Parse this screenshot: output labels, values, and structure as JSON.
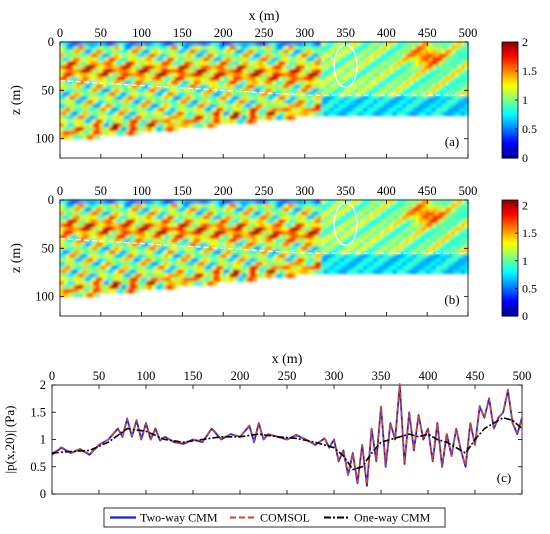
{
  "colors": {
    "two_way": "#1f1fd6",
    "comsol": "#c8482a",
    "one_way": "#000000",
    "colormap": [
      "#00008f",
      "#0000ff",
      "#0080ff",
      "#00ffff",
      "#80ff80",
      "#ffff00",
      "#ff8000",
      "#ff0000",
      "#800000"
    ]
  },
  "chart_data": [
    {
      "type": "heatmap",
      "panel_label": "(a)",
      "title": "",
      "xlabel": "x (m)",
      "ylabel": "z (m)",
      "xlim": [
        0,
        500
      ],
      "ylim": [
        0,
        120
      ],
      "y_reversed": true,
      "xticks": [
        "0",
        "50",
        "100",
        "150",
        "200",
        "250",
        "300",
        "350",
        "400",
        "450",
        "500"
      ],
      "yticks": [
        "0",
        "50",
        "100"
      ],
      "colorbar": {
        "range": [
          0,
          2
        ],
        "ticks": [
          "0",
          "0.5",
          "1",
          "1.5",
          "2"
        ]
      },
      "seabed_depth": [
        [
          0,
          100
        ],
        [
          300,
          75
        ],
        [
          500,
          75
        ]
      ],
      "interface_depth": [
        [
          0,
          40
        ],
        [
          300,
          55
        ],
        [
          500,
          55
        ]
      ],
      "annotation": {
        "type": "circle",
        "center": [
          350,
          25
        ],
        "radius_x": 14,
        "radius_y": 22
      }
    },
    {
      "type": "heatmap",
      "panel_label": "(b)",
      "title": "",
      "xlabel": "",
      "ylabel": "z (m)",
      "xlim": [
        0,
        500
      ],
      "ylim": [
        0,
        120
      ],
      "y_reversed": true,
      "xticks": [
        "0",
        "50",
        "100",
        "150",
        "200",
        "250",
        "300",
        "350",
        "400",
        "450",
        "500"
      ],
      "yticks": [
        "0",
        "50",
        "100"
      ],
      "colorbar": {
        "range": [
          0,
          2.1
        ],
        "ticks": [
          "0",
          "0.5",
          "1",
          "1.5",
          "2"
        ]
      },
      "seabed_depth": [
        [
          0,
          100
        ],
        [
          300,
          75
        ],
        [
          500,
          75
        ]
      ],
      "interface_depth": [
        [
          0,
          40
        ],
        [
          300,
          55
        ],
        [
          500,
          55
        ]
      ],
      "annotation": {
        "type": "circle",
        "center": [
          350,
          25
        ],
        "radius_x": 14,
        "radius_y": 22
      }
    },
    {
      "type": "line",
      "panel_label": "(c)",
      "title": "",
      "xlabel": "x (m)",
      "ylabel": "|p(x,20)| (Pa)",
      "xlim": [
        0,
        500
      ],
      "ylim": [
        0,
        2
      ],
      "xticks": [
        "0",
        "50",
        "100",
        "150",
        "200",
        "250",
        "300",
        "350",
        "400",
        "450",
        "500"
      ],
      "yticks": [
        "0",
        "0.5",
        "1",
        "1.5",
        "2"
      ],
      "legend": "bottom-outside",
      "series": [
        {
          "name": "Two-way CMM",
          "style": "solid",
          "x": [
            0,
            10,
            20,
            30,
            40,
            50,
            60,
            70,
            75,
            80,
            85,
            90,
            95,
            100,
            105,
            110,
            115,
            120,
            130,
            140,
            150,
            160,
            170,
            180,
            190,
            200,
            210,
            215,
            220,
            225,
            230,
            240,
            250,
            260,
            270,
            280,
            290,
            295,
            300,
            305,
            310,
            315,
            320,
            325,
            330,
            335,
            340,
            345,
            350,
            355,
            360,
            365,
            370,
            375,
            380,
            385,
            390,
            395,
            400,
            405,
            410,
            415,
            420,
            425,
            430,
            435,
            440,
            445,
            450,
            455,
            460,
            465,
            470,
            475,
            480,
            485,
            490,
            495,
            500
          ],
          "y": [
            0.72,
            0.85,
            0.75,
            0.82,
            0.72,
            0.9,
            1.0,
            1.2,
            1.05,
            1.38,
            1.05,
            1.35,
            1.0,
            1.3,
            1.0,
            1.2,
            0.98,
            1.05,
            0.95,
            0.92,
            1.0,
            0.95,
            1.2,
            1.0,
            1.1,
            1.05,
            1.25,
            0.95,
            1.3,
            1.0,
            1.1,
            1.05,
            1.0,
            1.08,
            1.0,
            0.9,
            1.02,
            0.85,
            1.0,
            0.6,
            0.8,
            0.35,
            0.75,
            0.2,
            0.9,
            0.15,
            1.2,
            0.6,
            1.6,
            0.5,
            1.3,
            1.0,
            2.0,
            0.55,
            1.5,
            0.8,
            1.45,
            1.0,
            1.2,
            0.6,
            1.3,
            0.5,
            1.1,
            0.7,
            1.2,
            0.8,
            0.5,
            1.3,
            0.9,
            1.6,
            1.4,
            1.75,
            1.2,
            1.4,
            1.5,
            1.9,
            1.3,
            1.1,
            1.4
          ]
        },
        {
          "name": "COMSOL",
          "style": "dashed",
          "x": [
            0,
            10,
            20,
            30,
            40,
            50,
            60,
            70,
            75,
            80,
            85,
            90,
            95,
            100,
            105,
            110,
            115,
            120,
            130,
            140,
            150,
            160,
            170,
            180,
            190,
            200,
            210,
            215,
            220,
            225,
            230,
            240,
            250,
            260,
            270,
            280,
            290,
            295,
            300,
            305,
            310,
            315,
            320,
            325,
            330,
            335,
            340,
            345,
            350,
            355,
            360,
            365,
            370,
            375,
            380,
            385,
            390,
            395,
            400,
            405,
            410,
            415,
            420,
            425,
            430,
            435,
            440,
            445,
            450,
            455,
            460,
            465,
            470,
            475,
            480,
            485,
            490,
            495,
            500
          ],
          "y": [
            0.74,
            0.86,
            0.76,
            0.83,
            0.73,
            0.9,
            1.0,
            1.21,
            1.06,
            1.39,
            1.06,
            1.36,
            1.01,
            1.31,
            1.0,
            1.21,
            0.99,
            1.05,
            0.95,
            0.93,
            1.0,
            0.96,
            1.21,
            1.01,
            1.1,
            1.05,
            1.26,
            0.96,
            1.3,
            1.01,
            1.1,
            1.05,
            1.0,
            1.09,
            1.0,
            0.9,
            1.02,
            0.86,
            1.0,
            0.62,
            0.8,
            0.36,
            0.76,
            0.22,
            0.9,
            0.17,
            1.2,
            0.62,
            1.6,
            0.52,
            1.3,
            1.0,
            2.02,
            0.56,
            1.5,
            0.8,
            1.46,
            1.0,
            1.2,
            0.62,
            1.3,
            0.52,
            1.1,
            0.7,
            1.2,
            0.8,
            0.52,
            1.3,
            0.9,
            1.62,
            1.4,
            1.76,
            1.2,
            1.4,
            1.5,
            1.92,
            1.3,
            1.12,
            1.4
          ]
        },
        {
          "name": "One-way CMM",
          "style": "dashdot",
          "x": [
            0,
            20,
            40,
            60,
            80,
            100,
            120,
            140,
            160,
            180,
            200,
            220,
            240,
            260,
            280,
            300,
            310,
            320,
            330,
            340,
            350,
            360,
            370,
            380,
            390,
            400,
            410,
            420,
            430,
            440,
            450,
            460,
            470,
            480,
            490,
            500
          ],
          "y": [
            0.75,
            0.78,
            0.8,
            0.95,
            1.2,
            1.15,
            1.0,
            0.95,
            1.0,
            1.05,
            1.05,
            1.1,
            1.05,
            1.02,
            0.95,
            0.85,
            0.7,
            0.45,
            0.5,
            0.75,
            0.95,
            1.0,
            1.05,
            1.1,
            1.05,
            1.1,
            1.0,
            0.95,
            0.85,
            0.75,
            1.0,
            1.2,
            1.3,
            1.4,
            1.35,
            1.2
          ]
        }
      ]
    }
  ]
}
